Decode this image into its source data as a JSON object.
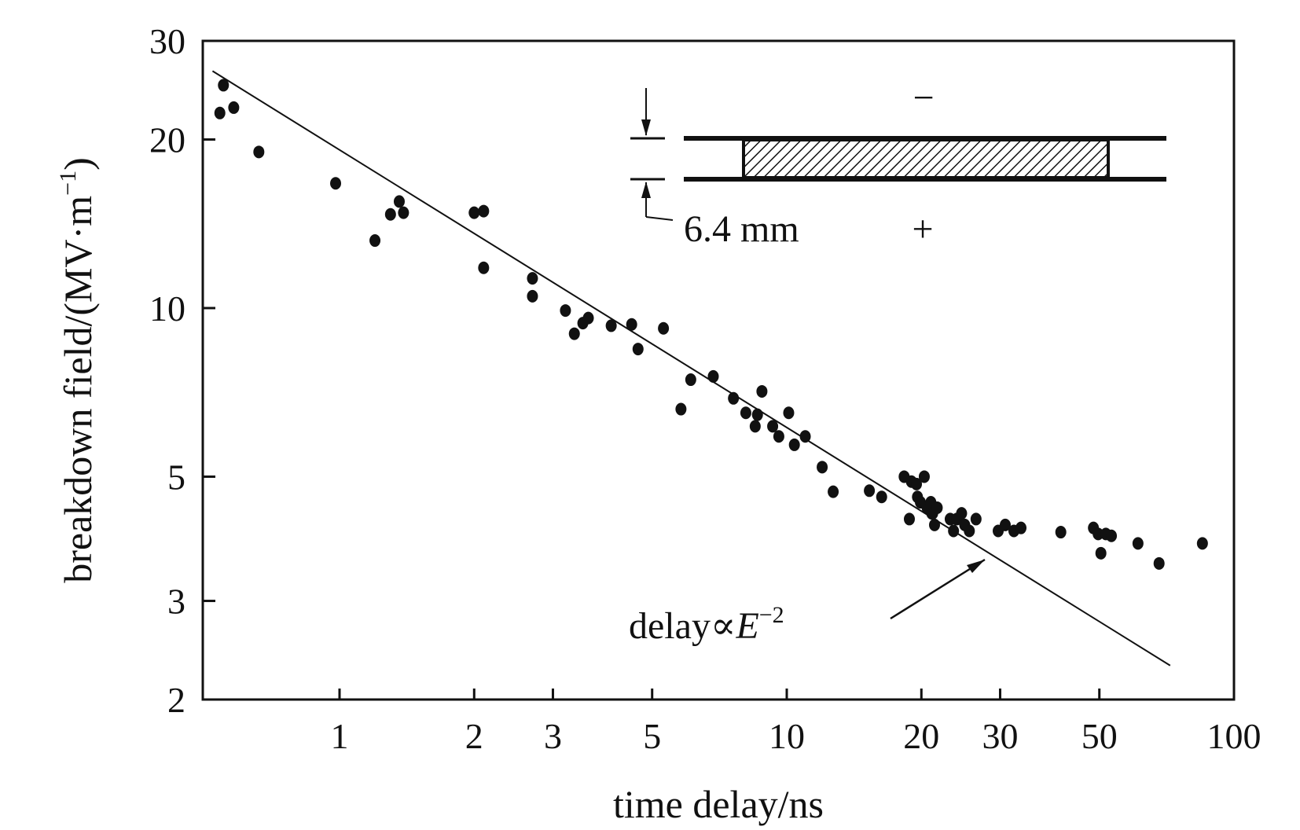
{
  "chart_data": {
    "type": "scatter",
    "title": "",
    "xlabel": "time delay/ns",
    "ylabel": "breakdown field/(MV·m",
    "ylabel_sup": "−1",
    "ylabel_close": ")",
    "xscale": "log",
    "yscale": "log",
    "xlim": [
      0.5,
      100
    ],
    "ylim": [
      2,
      30
    ],
    "grid": false,
    "legend": "none",
    "x_ticks": [
      1,
      2,
      3,
      5,
      10,
      20,
      30,
      50,
      100
    ],
    "x_tick_labels": [
      "1",
      "2",
      "3",
      "5",
      "10",
      "20",
      "30",
      "50",
      "100"
    ],
    "y_ticks": [
      2,
      3,
      5,
      10,
      20,
      30
    ],
    "y_tick_labels": [
      "2",
      "3",
      "5",
      "10",
      "20",
      "30"
    ],
    "series": [
      {
        "x": [
          0.54,
          0.55,
          0.58,
          0.66,
          0.98,
          1.2,
          1.3,
          1.36,
          1.39,
          2.0,
          2.1,
          2.1,
          2.7,
          2.7,
          3.2,
          3.35,
          3.5,
          3.6,
          4.05,
          4.5,
          4.65,
          5.3,
          5.8,
          6.1,
          6.85,
          7.6,
          8.1,
          8.5,
          8.6,
          8.8,
          9.3,
          9.6,
          10.1,
          10.4,
          11.0,
          12.0,
          12.7,
          15.3,
          16.3,
          18.3,
          18.8,
          19.0,
          19.5,
          19.6,
          19.9,
          20.3,
          20.6,
          21.0,
          21.1,
          21.2,
          21.4,
          21.7,
          23.2,
          23.6,
          24.0,
          24.6,
          25.0,
          25.6,
          26.5,
          29.7,
          30.8,
          32.2,
          33.4,
          41.0,
          48.5,
          49.7,
          50.4,
          51.7,
          53.2,
          61.0,
          68.0,
          85.0
        ],
        "y": [
          22.3,
          25.0,
          22.8,
          19.0,
          16.7,
          13.2,
          14.7,
          15.5,
          14.8,
          14.8,
          14.9,
          11.8,
          11.3,
          10.5,
          9.9,
          9.0,
          9.4,
          9.6,
          9.3,
          9.35,
          8.45,
          9.2,
          6.6,
          7.45,
          7.55,
          6.9,
          6.5,
          6.15,
          6.45,
          7.1,
          6.15,
          5.9,
          6.5,
          5.7,
          5.9,
          5.2,
          4.7,
          4.72,
          4.6,
          5.0,
          4.2,
          4.9,
          4.85,
          4.6,
          4.5,
          5.0,
          4.4,
          4.5,
          4.3,
          4.3,
          4.1,
          4.4,
          4.2,
          4.0,
          4.2,
          4.3,
          4.1,
          4.0,
          4.2,
          4.0,
          4.1,
          4.0,
          4.05,
          3.98,
          4.05,
          3.95,
          3.65,
          3.95,
          3.92,
          3.8,
          3.5,
          3.8
        ]
      }
    ],
    "fit_line": {
      "x": [
        0.52,
        72
      ],
      "y": [
        26.5,
        2.3
      ]
    },
    "annotations": {
      "fit_label_prefix": "delay∝",
      "fit_label_var": "E",
      "fit_label_sup": "−2",
      "inset_top_sign": "−",
      "inset_bottom_sign": "+",
      "inset_gap_label": "6.4 mm"
    }
  }
}
